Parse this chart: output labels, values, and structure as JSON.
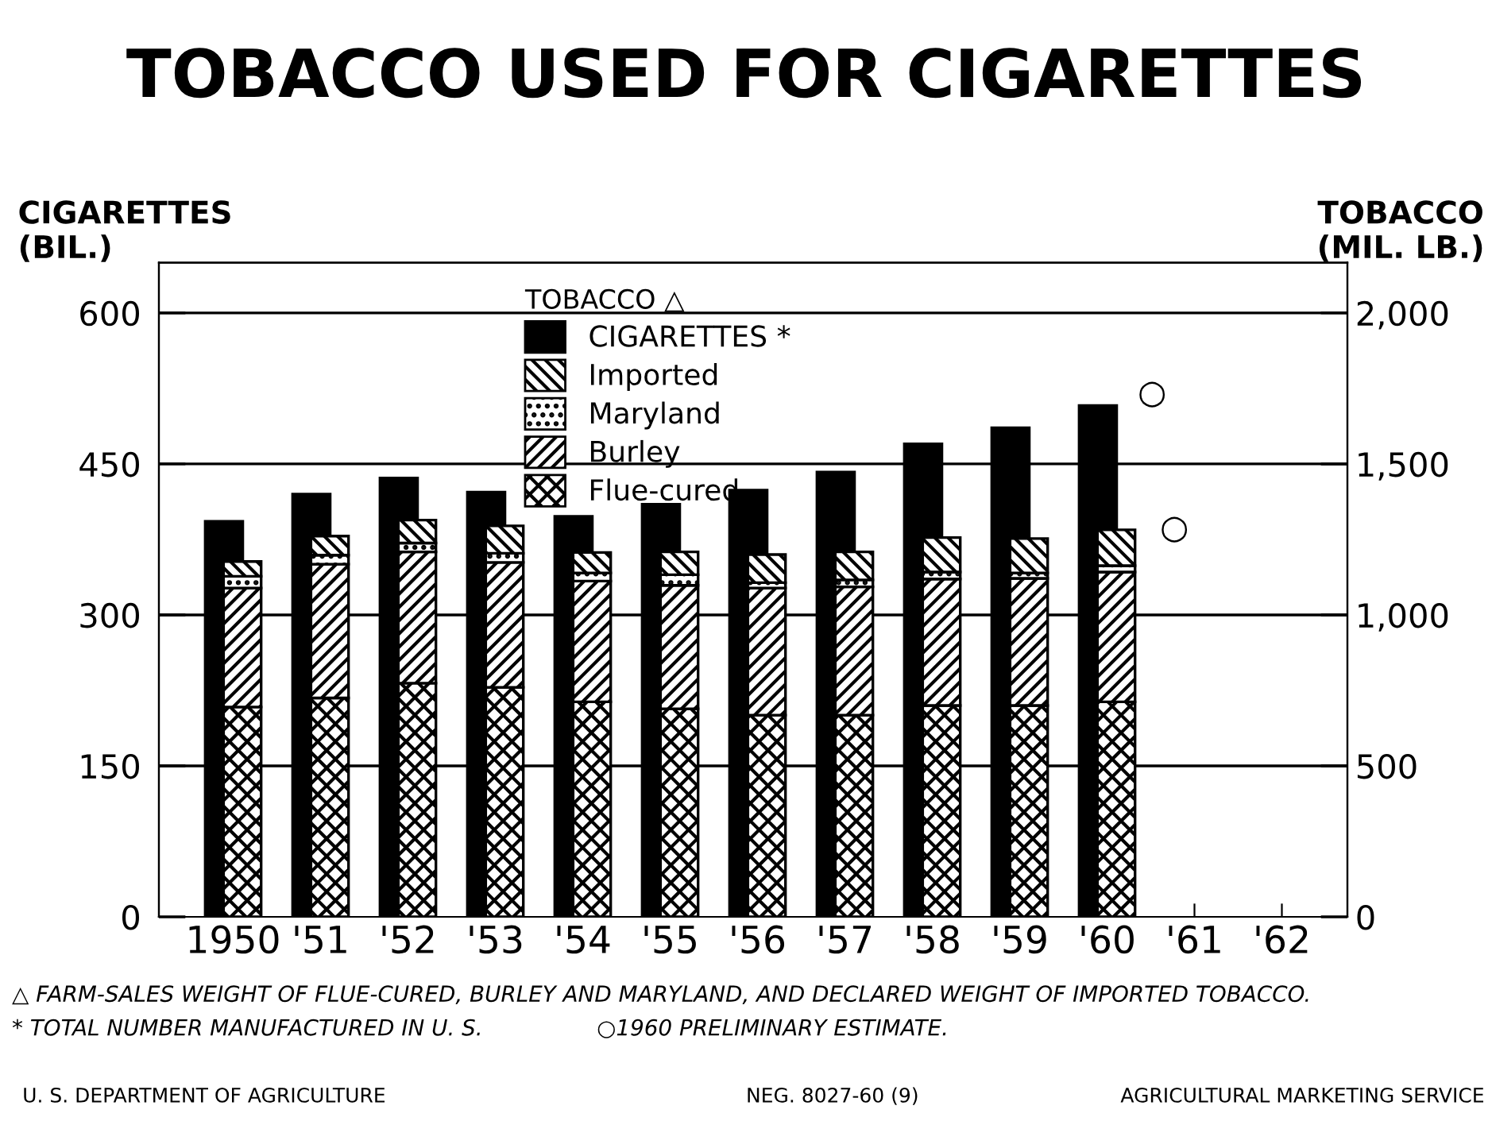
{
  "chart_data": {
    "type": "bar",
    "title": "TOBACCO USED FOR CIGARETTES",
    "ylabel": "CIGARETTES\n(BIL.)",
    "y2label": "TOBACCO\n(MIL. LB.)",
    "legend_title": "TOBACCO △",
    "categories": [
      "1950",
      "'51",
      "'52",
      "'53",
      "'54",
      "'55",
      "'56",
      "'57",
      "'58",
      "'59",
      "'60",
      "'61",
      "'62"
    ],
    "stacked": true,
    "series": [
      {
        "name": "CIGARETTES *",
        "color": "#000000",
        "axis": "y",
        "values": [
          393,
          420,
          436,
          422,
          398,
          410,
          424,
          442,
          470,
          486,
          508,
          null,
          null
        ]
      },
      {
        "name": "Flue-cured",
        "color": "#000000",
        "axis": "y2",
        "values": [
          695,
          725,
          774,
          760,
          712,
          689,
          668,
          668,
          700,
          700,
          712,
          null,
          null
        ]
      },
      {
        "name": "Burley",
        "color": "#000000",
        "axis": "y2",
        "values": [
          394,
          443,
          435,
          414,
          400,
          409,
          421,
          425,
          419,
          421,
          430,
          null,
          null
        ]
      },
      {
        "name": "Maryland",
        "color": "#000000",
        "axis": "y2",
        "values": [
          39,
          30,
          29,
          30,
          27,
          35,
          18,
          23,
          23,
          18,
          21,
          null,
          null
        ]
      },
      {
        "name": "Imported",
        "color": "#000000",
        "axis": "y2",
        "values": [
          49,
          63,
          76,
          91,
          68,
          76,
          93,
          93,
          114,
          114,
          119,
          null,
          null
        ]
      }
    ],
    "ylim": [
      0,
      650
    ],
    "yticks": [
      0,
      150,
      300,
      450,
      600
    ],
    "y2lim": [
      0,
      2166.7
    ],
    "y2ticks": [
      0,
      500,
      {
        "value": 1000,
        "label": "1,000"
      },
      {
        "value": 1500,
        "label": "1,500"
      },
      {
        "value": 2000,
        "label": "2,000"
      }
    ],
    "grid": "y",
    "legend": "top",
    "annotations": [
      "○",
      "○",
      "△ FARM-SALES WEIGHT OF FLUE-CURED, BURLEY AND MARYLAND, AND DECLARED WEIGHT OF IMPORTED TOBACCO.",
      "* TOTAL NUMBER MANUFACTURED IN U. S.",
      "○1960 PRELIMINARY ESTIMATE.",
      "U. S. DEPARTMENT OF AGRICULTURE",
      "NEG. 8027-60 (9)",
      "AGRICULTURAL MARKETING SERVICE"
    ]
  }
}
